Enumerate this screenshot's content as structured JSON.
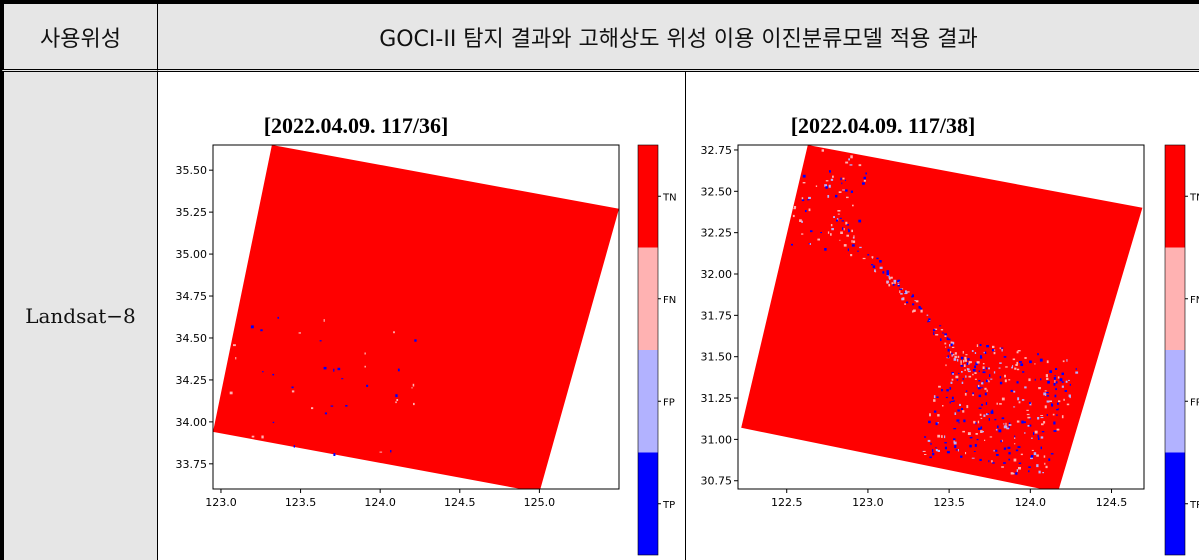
{
  "table": {
    "header_col1": "사용위성",
    "header_col2": "GOCI-II 탐지 결과와 고해상도 위성 이용 이진분류모델 적용 결과",
    "row_label": "Landsat−8"
  },
  "colors": {
    "TN": "#ff0000",
    "FN": "#ffb2b2",
    "FP": "#b2b2ff",
    "TP": "#0000ff",
    "header_bg": "#e6e6e6"
  },
  "chart_data": [
    {
      "type": "heatmap",
      "title": "[2022.04.09.  117/36]",
      "xticks": [
        "123.0",
        "123.5",
        "124.0",
        "124.5",
        "125.0"
      ],
      "yticks": [
        "35.50",
        "35.25",
        "35.00",
        "34.75",
        "34.50",
        "34.25",
        "34.00",
        "33.75"
      ],
      "xlim": [
        122.95,
        125.5
      ],
      "ylim": [
        33.6,
        35.65
      ],
      "scene_corners": [
        [
          123.32,
          35.65
        ],
        [
          125.5,
          35.27
        ],
        [
          125.0,
          33.58
        ],
        [
          122.95,
          33.94
        ]
      ],
      "legend": [
        "TN",
        "FN",
        "FP",
        "TP"
      ]
    },
    {
      "type": "heatmap",
      "title": "[2022.04.09.  117/38]",
      "xticks": [
        "122.5",
        "123.0",
        "123.5",
        "124.0",
        "124.5"
      ],
      "yticks": [
        "32.75",
        "32.50",
        "32.25",
        "32.00",
        "31.75",
        "31.50",
        "31.25",
        "31.00",
        "30.75"
      ],
      "xlim": [
        122.2,
        124.7
      ],
      "ylim": [
        30.7,
        32.78
      ],
      "scene_corners": [
        [
          122.63,
          32.78
        ],
        [
          124.69,
          32.4
        ],
        [
          124.17,
          30.68
        ],
        [
          122.22,
          31.07
        ]
      ],
      "legend": [
        "TN",
        "FN",
        "FP",
        "TP"
      ]
    }
  ]
}
